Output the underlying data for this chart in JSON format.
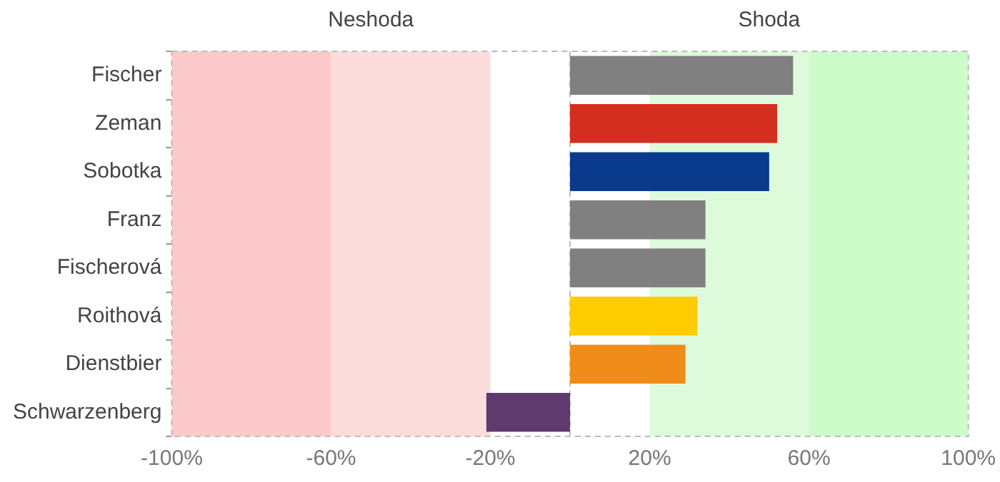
{
  "chart_data": {
    "type": "bar",
    "orientation": "horizontal",
    "categories": [
      "Fischer",
      "Zeman",
      "Sobotka",
      "Franz",
      "Fischerová",
      "Roithová",
      "Dienstbier",
      "Schwarzenberg"
    ],
    "values": [
      56,
      52,
      50,
      34,
      34,
      32,
      29,
      -21
    ],
    "colors": [
      "#808080",
      "#d42e1f",
      "#0a3a8c",
      "#808080",
      "#808080",
      "#ffcc00",
      "#f08c1a",
      "#5e3a6e"
    ],
    "xlim": [
      -100,
      100
    ],
    "xticks": [
      {
        "value": -100,
        "label": "-100%"
      },
      {
        "value": -60,
        "label": "-60%"
      },
      {
        "value": -20,
        "label": "-20%"
      },
      {
        "value": 20,
        "label": "20%"
      },
      {
        "value": 60,
        "label": "60%"
      },
      {
        "value": 100,
        "label": "100%"
      }
    ],
    "bands": [
      {
        "axis": "x",
        "from": -100,
        "to": -60,
        "color": "#fccaca"
      },
      {
        "axis": "x",
        "from": -60,
        "to": -20,
        "color": "#fddcdc"
      },
      {
        "axis": "x",
        "from": 20,
        "to": 60,
        "color": "#ddfadb"
      },
      {
        "axis": "x",
        "from": 60,
        "to": 100,
        "color": "#cdfccb"
      }
    ],
    "ref_lines": [
      {
        "axis": "x",
        "value": 0,
        "color": "#bbbbbb",
        "line_style": "dashed"
      }
    ],
    "annotations": [
      "Neshoda",
      "Shoda"
    ],
    "grid": false,
    "legend": false
  }
}
